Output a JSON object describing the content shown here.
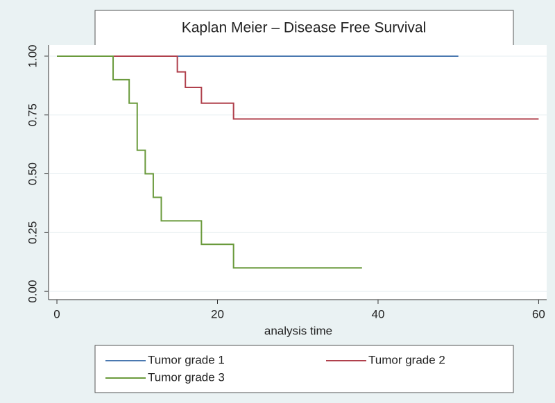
{
  "chart_data": {
    "type": "step",
    "title": "Kaplan Meier – Disease Free Survival",
    "x_label": "analysis time",
    "xlim": [
      -1.04,
      61
    ],
    "xticks": [
      0,
      20,
      40,
      60
    ],
    "ylim": [
      -0.035,
      1.047
    ],
    "yticks": [
      {
        "value": 0,
        "label": "0.00"
      },
      {
        "value": 0.25,
        "label": "0.25"
      },
      {
        "value": 0.5,
        "label": "0.50"
      },
      {
        "value": 0.75,
        "label": "0.75"
      },
      {
        "value": 1,
        "label": "1.00"
      }
    ],
    "grid": true,
    "legend": "bottom",
    "series": [
      {
        "name": "Tumor grade 1",
        "color": "#4a78b0",
        "x": [
          0,
          50
        ],
        "values": [
          1,
          1
        ]
      },
      {
        "name": "Tumor grade 2",
        "color": "#b0404c",
        "x": [
          0,
          15,
          15,
          16,
          16,
          18,
          18,
          22,
          22,
          60
        ],
        "values": [
          1,
          1,
          0.933,
          0.933,
          0.867,
          0.867,
          0.8,
          0.8,
          0.733,
          0.733
        ]
      },
      {
        "name": "Tumor grade 3",
        "color": "#6a9a3c",
        "x": [
          0,
          7,
          7,
          9,
          9,
          10,
          10,
          11,
          11,
          12,
          12,
          13,
          13,
          18,
          18,
          22,
          22,
          38
        ],
        "values": [
          1,
          1,
          0.9,
          0.9,
          0.8,
          0.8,
          0.6,
          0.6,
          0.5,
          0.5,
          0.4,
          0.4,
          0.3,
          0.3,
          0.2,
          0.2,
          0.1,
          0.1
        ]
      }
    ]
  }
}
